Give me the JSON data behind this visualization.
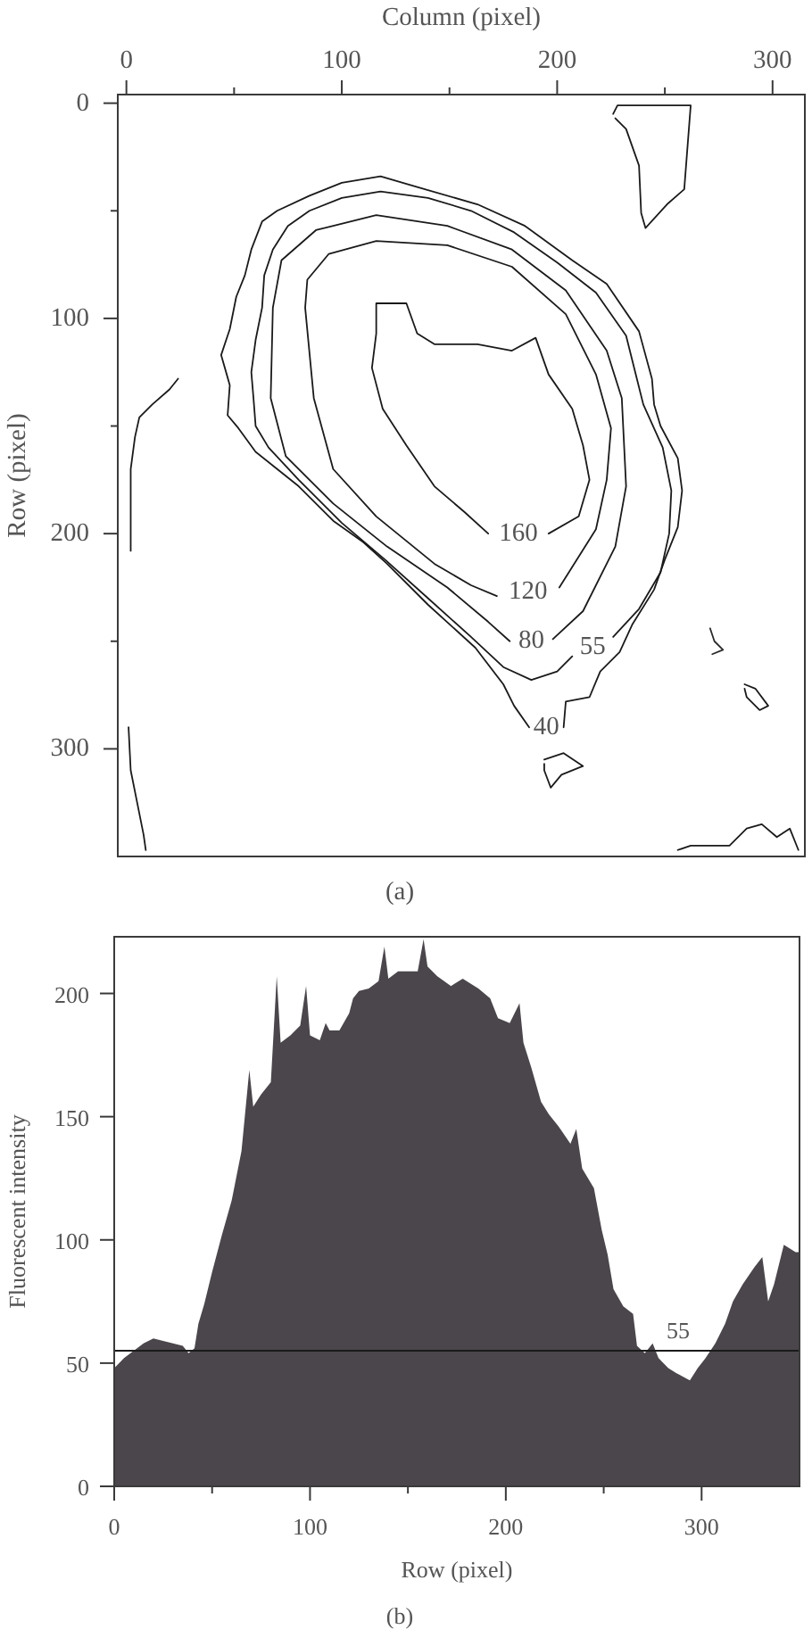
{
  "chart_data": [
    {
      "type": "line",
      "xlabel": "Column (pixel)",
      "ylabel": "Row (pixel)",
      "xlim": [
        -4,
        315
      ],
      "ylim": [
        350,
        -4
      ],
      "xticks": [
        0,
        {
          "value": 50,
          "label": null
        },
        100,
        {
          "value": 150,
          "label": null
        },
        200,
        {
          "value": 250,
          "label": null
        },
        300
      ],
      "yticks": [
        0,
        {
          "value": 50,
          "label": null
        },
        100,
        {
          "value": 150,
          "label": null
        },
        200,
        {
          "value": 250,
          "label": null
        },
        300
      ],
      "series": [
        {
          "name": "160",
          "color": "#1a1a1a",
          "x": [
            168,
            157,
            143,
            130,
            119,
            114,
            116,
            116,
            130,
            135,
            143,
            163,
            179,
            190,
            196,
            207,
            212,
            215,
            210,
            196
          ],
          "values": [
            200,
            190,
            178,
            159,
            142,
            123,
            107,
            93,
            93,
            107,
            112,
            112,
            115,
            109,
            126,
            142,
            159,
            175,
            192,
            200
          ]
        },
        {
          "name": "120",
          "color": "#1a1a1a",
          "x": [
            201,
            218,
            223,
            225,
            218,
            204,
            179,
            149,
            116,
            94,
            84,
            83,
            87,
            96,
            116,
            143,
            160,
            172
          ],
          "values": [
            225,
            198,
            175,
            151,
            126,
            98,
            76,
            66,
            64,
            70,
            82,
            95,
            137,
            170,
            192,
            214,
            224,
            229
          ]
        },
        {
          "name": "80",
          "color": "#1a1a1a",
          "x": [
            198,
            212,
            227,
            232,
            230,
            223,
            204,
            179,
            149,
            116,
            88,
            72,
            68,
            67,
            74,
            96,
            121,
            149,
            168,
            178
          ],
          "values": [
            249,
            236,
            206,
            178,
            137,
            115,
            87,
            68,
            57,
            52,
            59,
            73,
            95,
            137,
            164,
            186,
            206,
            225,
            241,
            250
          ]
        },
        {
          "name": "55",
          "color": "#1a1a1a",
          "x": [
            226,
            238,
            248,
            252,
            253,
            249,
            240,
            237,
            232,
            218,
            200,
            180,
            160,
            140,
            118,
            100,
            85,
            75,
            68,
            64,
            63,
            60,
            58,
            59,
            60,
            66,
            80,
            100,
            120,
            140,
            160,
            175,
            188,
            200,
            207
          ],
          "values": [
            248,
            235,
            218,
            200,
            180,
            160,
            140,
            128,
            108,
            88,
            74,
            60,
            50,
            44,
            41,
            44,
            50,
            57,
            68,
            80,
            95,
            110,
            125,
            137,
            150,
            160,
            175,
            195,
            212,
            230,
            248,
            262,
            268,
            264,
            257
          ]
        },
        {
          "name": "40",
          "color": "#1a1a1a",
          "x": [
            203,
            204,
            215,
            220,
            229,
            235,
            245,
            250,
            256,
            258,
            256,
            248,
            245,
            244,
            238,
            223,
            207,
            185,
            163,
            135,
            118,
            100,
            85,
            70,
            63,
            58,
            55,
            51,
            48,
            44,
            48,
            47,
            52,
            60,
            70,
            80,
            96,
            110,
            121,
            140,
            162,
            175,
            180,
            187
          ],
          "values": [
            290,
            278,
            276,
            264,
            255,
            242,
            226,
            212,
            197,
            180,
            165,
            150,
            140,
            128,
            106,
            84,
            73,
            57,
            47,
            39,
            34,
            37,
            43,
            50,
            55,
            68,
            80,
            90,
            105,
            117,
            131,
            145,
            151,
            162,
            170,
            178,
            194,
            204,
            214,
            233,
            253,
            270,
            280,
            290
          ]
        },
        {
          "color": "#1a1a1a",
          "x": [
            226,
            228,
            262,
            259,
            251,
            241,
            239,
            238,
            232,
            227
          ],
          "values": [
            5,
            1,
            1,
            40,
            47,
            58,
            51,
            29,
            12,
            7
          ]
        },
        {
          "color": "#1a1a1a",
          "x": [
            24,
            20,
            12,
            6,
            4,
            2,
            2,
            2
          ],
          "values": [
            128,
            133,
            140,
            146,
            155,
            170,
            190,
            208
          ]
        },
        {
          "color": "#1a1a1a",
          "x": [
            1,
            2,
            5,
            8,
            9
          ],
          "values": [
            290,
            310,
            325,
            340,
            347
          ]
        },
        {
          "color": "#1a1a1a",
          "x": [
            194,
            203,
            212,
            202,
            197,
            194,
            194
          ],
          "values": [
            305,
            302,
            308,
            312,
            318,
            310,
            307
          ]
        },
        {
          "color": "#1a1a1a",
          "x": [
            287,
            292,
            298,
            294,
            288,
            287
          ],
          "values": [
            270,
            272,
            280,
            282,
            276,
            272
          ]
        },
        {
          "color": "#2a2a2a",
          "x": [
            271,
            273,
            277,
            272
          ],
          "values": [
            244,
            250,
            254,
            256
          ]
        },
        {
          "color": "#1a1a1a",
          "x": [
            256,
            262,
            280,
            288,
            295,
            302,
            308,
            312
          ],
          "values": [
            347,
            345,
            345,
            337,
            335,
            341,
            337,
            347
          ]
        }
      ],
      "annotations": [
        "(a)"
      ]
    },
    {
      "type": "area",
      "xlabel": "Row (pixel)",
      "ylabel": "Fluorescent intensity",
      "xlim": [
        0,
        350
      ],
      "ylim": [
        0,
        223
      ],
      "xticks": [
        0,
        {
          "value": 50,
          "label": null
        },
        100,
        {
          "value": 150,
          "label": null
        },
        200,
        {
          "value": 250,
          "label": null
        },
        300
      ],
      "yticks": [
        0,
        50,
        100,
        150,
        200
      ],
      "color": "#4a464b",
      "x": [
        0,
        5,
        10,
        15,
        20,
        25,
        30,
        35,
        38,
        41,
        43,
        46,
        50,
        55,
        60,
        65,
        69,
        71,
        75,
        80,
        83,
        85,
        90,
        95,
        98,
        100,
        105,
        108,
        110,
        115,
        120,
        122,
        125,
        130,
        135,
        138,
        140,
        145,
        150,
        155,
        158,
        160,
        165,
        172,
        178,
        186,
        192,
        196,
        202,
        207,
        209,
        213,
        218,
        222,
        227,
        233,
        236,
        239,
        245,
        249,
        252,
        255,
        260,
        265,
        267,
        271,
        275,
        278,
        283,
        287,
        294,
        298,
        302,
        307,
        312,
        316,
        321,
        327,
        331,
        334,
        337,
        342,
        348,
        350
      ],
      "values": [
        48,
        52,
        55,
        58,
        60,
        59,
        58,
        57,
        54,
        56,
        66,
        74,
        87,
        102,
        116,
        136,
        169,
        154,
        159,
        164,
        207,
        180,
        183,
        187,
        203,
        183,
        181,
        188,
        185,
        185,
        192,
        198,
        201,
        202,
        205,
        219,
        206,
        209,
        209,
        209,
        222,
        211,
        207,
        203,
        206,
        202,
        198,
        190,
        188,
        196,
        180,
        170,
        156,
        151,
        146,
        139,
        145,
        129,
        121,
        104,
        94,
        80,
        73,
        70,
        57,
        54,
        58,
        52,
        48,
        46,
        43,
        48,
        52,
        58,
        66,
        75,
        82,
        89,
        93,
        75,
        82,
        98,
        95,
        95
      ],
      "ref_lines": [
        {
          "axis": "y",
          "value": 55,
          "label": "55",
          "color": "#1a1a1a"
        }
      ],
      "annotations": [
        "(b)"
      ]
    }
  ]
}
